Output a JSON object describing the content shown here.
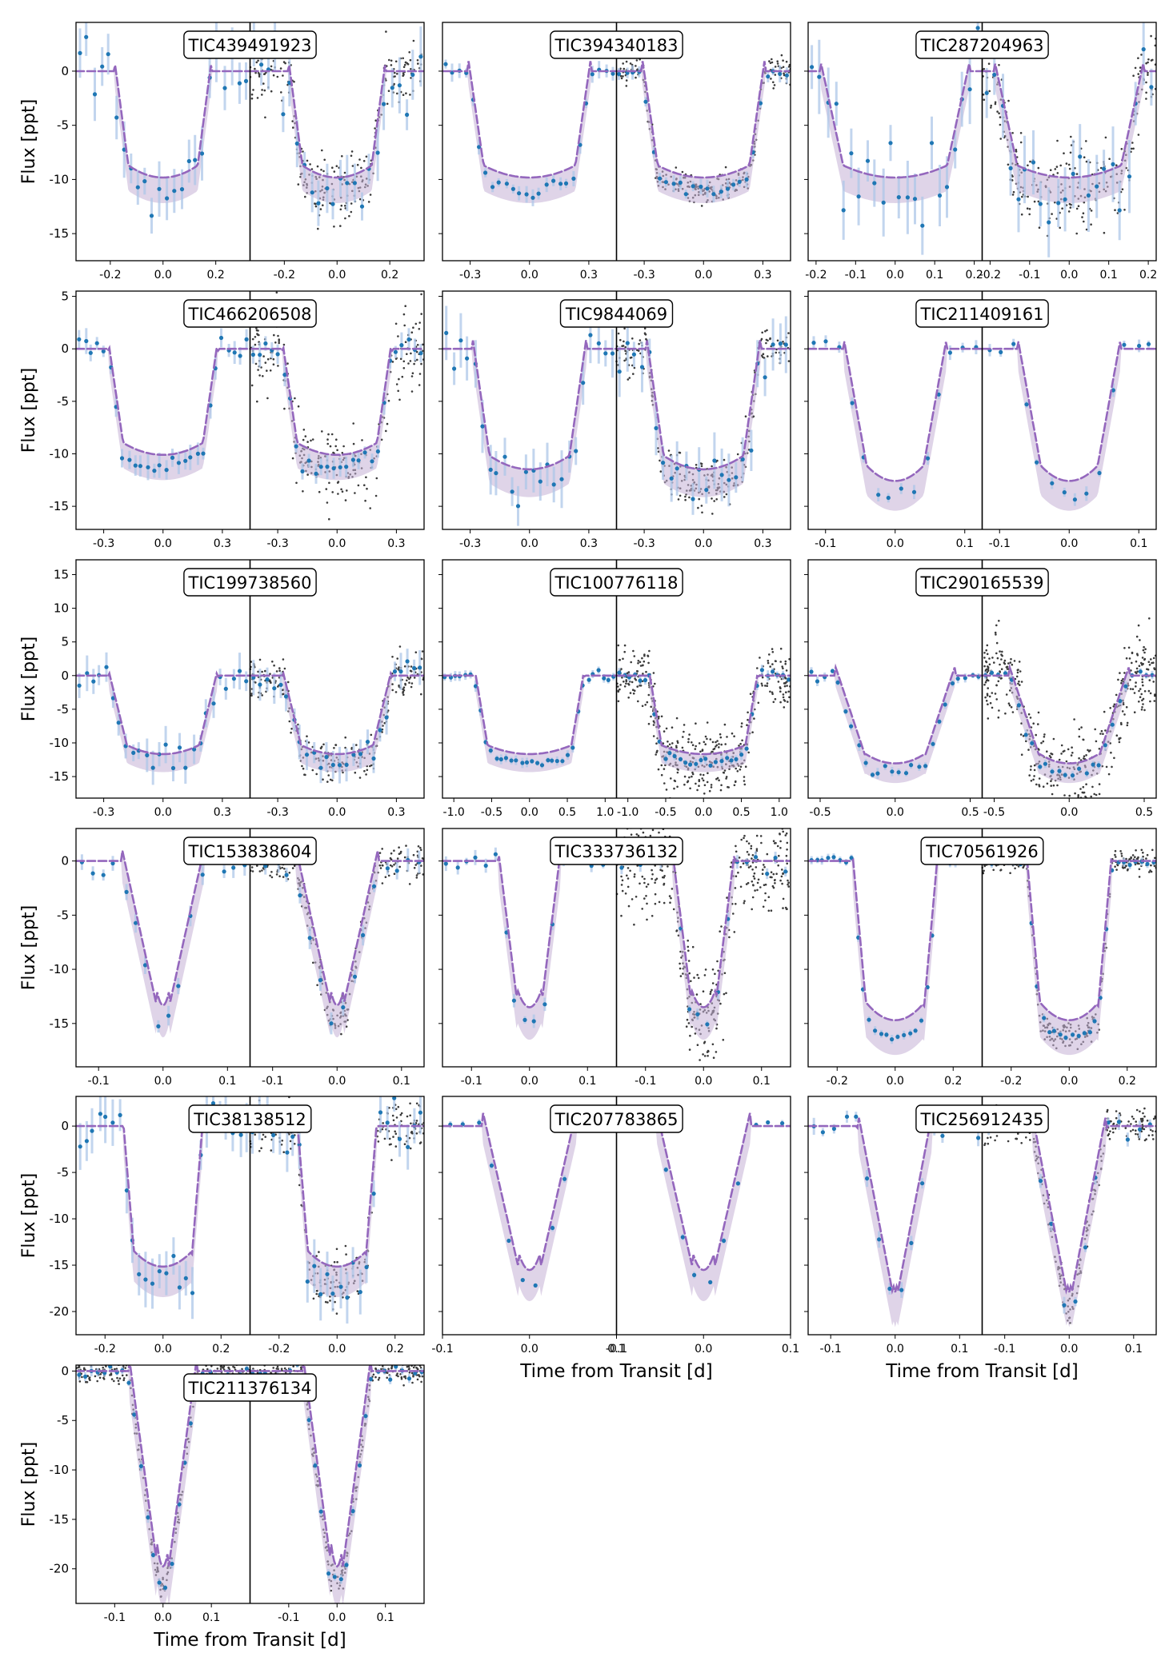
{
  "figure": {
    "ylabel": "Flux [ppt]",
    "xlabel": "Time from Transit [d]"
  },
  "colors": {
    "model": "#9467bd",
    "band": "#c5b0d5",
    "binned": "#1f77b4",
    "errorbar": "#aec7e8",
    "raw": "#3a3a3a"
  },
  "chart_data": [
    {
      "type": "line",
      "title": "TIC439491923",
      "depth": 11,
      "halfwidth": 0.13,
      "ingress": 0.055,
      "xlim": [
        -0.33,
        0.33
      ],
      "xticks": [
        -0.2,
        0,
        0.2
      ],
      "xtick_labels": [
        "-0.2",
        "0.0",
        "0.2"
      ],
      "ylim": [
        -17.5,
        4.5
      ],
      "yticks": [
        0,
        -5,
        -10,
        -15
      ],
      "ytick_labels": [
        "0",
        "-5",
        "-10",
        "-15"
      ],
      "noise": 1.6,
      "ebar": 2.0,
      "raw_right": true,
      "raw_left": false,
      "raw_noise": 1.5,
      "nbin": 24
    },
    {
      "type": "line",
      "title": "TIC394340183",
      "depth": 11,
      "halfwidth": 0.23,
      "ingress": 0.08,
      "xlim": [
        -0.44,
        0.44
      ],
      "xticks": [
        -0.3,
        0,
        0.3
      ],
      "xtick_labels": [
        "-0.3",
        "0.0",
        "0.3"
      ],
      "ylim": [
        -17.5,
        4.5
      ],
      "yticks": [
        0,
        -5,
        -10,
        -15
      ],
      "ytick_labels": [],
      "noise": 0.35,
      "ebar": 0.6,
      "raw_right": true,
      "raw_left": false,
      "raw_noise": 0.7,
      "nbin": 26
    },
    {
      "type": "line",
      "title": "TIC287204963",
      "depth": 11,
      "halfwidth": 0.13,
      "ingress": 0.06,
      "xlim": [
        -0.22,
        0.22
      ],
      "xticks": [
        -0.2,
        -0.1,
        0,
        0.1,
        0.2
      ],
      "xtick_labels": [
        "-0.2",
        "-0.1",
        "0.0",
        "0.1",
        "0.2"
      ],
      "ylim": [
        -17.5,
        4.5
      ],
      "yticks": [
        0,
        -5,
        -10,
        -15
      ],
      "ytick_labels": [],
      "noise": 2.0,
      "ebar": 2.5,
      "raw_right": true,
      "raw_left": false,
      "raw_noise": 2.0,
      "nbin": 22
    },
    {
      "type": "line",
      "title": "TIC466206508",
      "depth": 11.3,
      "halfwidth": 0.2,
      "ingress": 0.08,
      "xlim": [
        -0.44,
        0.44
      ],
      "xticks": [
        -0.3,
        0,
        0.3
      ],
      "xtick_labels": [
        "-0.3",
        "0.0",
        "0.3"
      ],
      "ylim": [
        -17.2,
        5.5
      ],
      "yticks": [
        5,
        0,
        -5,
        -10,
        -15
      ],
      "ytick_labels": [
        "5",
        "0",
        "-5",
        "-10",
        "-15"
      ],
      "noise": 0.5,
      "ebar": 0.9,
      "raw_right": true,
      "raw_left": false,
      "raw_noise": 2.0,
      "nbin": 28
    },
    {
      "type": "line",
      "title": "TIC9844069",
      "depth": 12.8,
      "halfwidth": 0.2,
      "ingress": 0.09,
      "xlim": [
        -0.44,
        0.44
      ],
      "xticks": [
        -0.3,
        0,
        0.3
      ],
      "xtick_labels": [
        "-0.3",
        "0.0",
        "0.3"
      ],
      "ylim": [
        -17.2,
        5.5
      ],
      "yticks": [
        5,
        0,
        -5,
        -10,
        -15
      ],
      "ytick_labels": [],
      "noise": 1.4,
      "ebar": 2.0,
      "raw_right": true,
      "raw_left": false,
      "raw_noise": 1.2,
      "nbin": 24
    },
    {
      "type": "line",
      "title": "TIC211409161",
      "depth": 14,
      "halfwidth": 0.04,
      "ingress": 0.035,
      "xlim": [
        -0.125,
        0.125
      ],
      "xticks": [
        -0.1,
        0,
        0.1
      ],
      "xtick_labels": [
        "-0.1",
        "0.0",
        "0.1"
      ],
      "ylim": [
        -17.2,
        5.5
      ],
      "yticks": [
        5,
        0,
        -5,
        -10,
        -15
      ],
      "ytick_labels": [],
      "noise": 0.5,
      "ebar": 0.5,
      "raw_right": false,
      "raw_left": false,
      "raw_noise": 0,
      "nbin": 14
    },
    {
      "type": "line",
      "title": "TIC199738560",
      "depth": 13,
      "halfwidth": 0.18,
      "ingress": 0.1,
      "xlim": [
        -0.44,
        0.44
      ],
      "xticks": [
        -0.3,
        0,
        0.3
      ],
      "xtick_labels": [
        "-0.3",
        "0.0",
        "0.3"
      ],
      "ylim": [
        -18.2,
        17.2
      ],
      "yticks": [
        15,
        10,
        5,
        0,
        -5,
        -10,
        -15
      ],
      "ytick_labels": [
        "15",
        "10",
        "5",
        "0",
        "-5",
        "-10",
        "-15"
      ],
      "noise": 1.2,
      "ebar": 2.0,
      "raw_right": true,
      "raw_left": false,
      "raw_noise": 1.6,
      "nbin": 26
    },
    {
      "type": "line",
      "title": "TIC100776118",
      "depth": 13,
      "halfwidth": 0.55,
      "ingress": 0.18,
      "xlim": [
        -1.15,
        1.15
      ],
      "xticks": [
        -1,
        -0.5,
        0,
        0.5,
        1
      ],
      "xtick_labels": [
        "-1.0",
        "-0.5",
        "0.0",
        "0.5",
        "1.0"
      ],
      "ylim": [
        -18.2,
        17.2
      ],
      "yticks": [
        15,
        10,
        5,
        0,
        -5,
        -10,
        -15
      ],
      "ytick_labels": [],
      "noise": 0.4,
      "ebar": 0.6,
      "raw_right": true,
      "raw_left": false,
      "raw_noise": 2.5,
      "nbin": 34
    },
    {
      "type": "line",
      "title": "TIC290165539",
      "depth": 14.5,
      "halfwidth": 0.2,
      "ingress": 0.2,
      "xlim": [
        -0.58,
        0.58
      ],
      "xticks": [
        -0.5,
        0,
        0.5
      ],
      "xtick_labels": [
        "-0.5",
        "0.0",
        "0.5"
      ],
      "ylim": [
        -18.2,
        17.2
      ],
      "yticks": [
        15,
        10,
        5,
        0,
        -5,
        -10,
        -15
      ],
      "ytick_labels": [],
      "noise": 0.5,
      "ebar": 0.6,
      "raw_right": true,
      "raw_left": false,
      "raw_noise": 3.0,
      "nbin": 26
    },
    {
      "type": "line",
      "title": "TIC153838604",
      "depth": 14.8,
      "halfwidth": 0.01,
      "ingress": 0.055,
      "xlim": [
        -0.135,
        0.135
      ],
      "xticks": [
        -0.1,
        0,
        0.1
      ],
      "xtick_labels": [
        "-0.1",
        "0.0",
        "0.1"
      ],
      "ylim": [
        -19,
        3
      ],
      "yticks": [
        0,
        -5,
        -10,
        -15
      ],
      "ytick_labels": [
        "0",
        "-5",
        "-10",
        "-15"
      ],
      "noise": 0.8,
      "ebar": 0.8,
      "raw_right": true,
      "raw_left": false,
      "raw_noise": 0.9,
      "nbin": 16
    },
    {
      "type": "line",
      "title": "TIC333736132",
      "depth": 15,
      "halfwidth": 0.02,
      "ingress": 0.035,
      "xlim": [
        -0.15,
        0.15
      ],
      "xticks": [
        -0.1,
        0,
        0.1
      ],
      "xtick_labels": [
        "-0.1",
        "0.0",
        "0.1"
      ],
      "ylim": [
        -19,
        3
      ],
      "yticks": [
        0,
        -5,
        -10,
        -15
      ],
      "ytick_labels": [],
      "noise": 0.5,
      "ebar": 0.5,
      "raw_right": true,
      "raw_left": false,
      "raw_noise": 2.5,
      "nbin": 18
    },
    {
      "type": "line",
      "title": "TIC70561926",
      "depth": 16.3,
      "halfwidth": 0.1,
      "ingress": 0.05,
      "xlim": [
        -0.3,
        0.3
      ],
      "xticks": [
        -0.2,
        0,
        0.2
      ],
      "xtick_labels": [
        "-0.2",
        "0.0",
        "0.2"
      ],
      "ylim": [
        -19,
        3
      ],
      "yticks": [
        0,
        -5,
        -10,
        -15
      ],
      "ytick_labels": [],
      "noise": 0.25,
      "ebar": 0.3,
      "raw_right": true,
      "raw_left": false,
      "raw_noise": 0.6,
      "nbin": 30
    },
    {
      "type": "line",
      "title": "TIC38138512",
      "depth": 16.8,
      "halfwidth": 0.1,
      "ingress": 0.04,
      "xlim": [
        -0.3,
        0.3
      ],
      "xticks": [
        -0.2,
        0,
        0.2
      ],
      "xtick_labels": [
        "-0.2",
        "0.0",
        "0.2"
      ],
      "ylim": [
        -22.5,
        3.2
      ],
      "yticks": [
        0,
        -5,
        -10,
        -15,
        -20
      ],
      "ytick_labels": [
        "0",
        "-5",
        "-10",
        "-15",
        "-20"
      ],
      "noise": 1.4,
      "ebar": 2.2,
      "raw_right": true,
      "raw_left": false,
      "raw_noise": 1.5,
      "nbin": 26
    },
    {
      "type": "line",
      "title": "TIC207783865",
      "depth": 17.2,
      "halfwidth": 0.012,
      "ingress": 0.042,
      "xlim": [
        -0.1,
        0.1
      ],
      "xticks": [
        -0.1,
        0,
        0.1
      ],
      "xtick_labels": [
        "-0.1",
        "0.0",
        "0.1"
      ],
      "ylim": [
        -22.5,
        3.2
      ],
      "yticks": [
        0,
        -5,
        -10,
        -15,
        -20
      ],
      "ytick_labels": [],
      "noise": 0.3,
      "ebar": 0.3,
      "raw_right": false,
      "raw_left": false,
      "raw_noise": 0,
      "nbin": 12
    },
    {
      "type": "line",
      "title": "TIC256912435",
      "depth": 19.8,
      "halfwidth": 0.004,
      "ingress": 0.055,
      "xlim": [
        -0.135,
        0.135
      ],
      "xticks": [
        -0.1,
        0,
        0.1
      ],
      "xtick_labels": [
        "-0.1",
        "0.0",
        "0.1"
      ],
      "ylim": [
        -22.5,
        3.2
      ],
      "yticks": [
        0,
        -5,
        -10,
        -15,
        -20
      ],
      "ytick_labels": [],
      "noise": 0.7,
      "ebar": 0.7,
      "raw_right": true,
      "raw_left": false,
      "raw_noise": 0.9,
      "nbin": 16
    },
    {
      "type": "line",
      "title": "TIC211376134",
      "depth": 21.8,
      "halfwidth": 0.012,
      "ingress": 0.06,
      "xlim": [
        -0.18,
        0.18
      ],
      "xticks": [
        -0.1,
        0,
        0.1
      ],
      "xtick_labels": [
        "-0.1",
        "0.0",
        "0.1"
      ],
      "ylim": [
        -23.5,
        0.6
      ],
      "yticks": [
        0,
        -5,
        -10,
        -15,
        -20
      ],
      "ytick_labels": [
        "0",
        "-5",
        "-10",
        "-15",
        "-20"
      ],
      "noise": 0.4,
      "ebar": 0.4,
      "raw_right": true,
      "raw_left": true,
      "raw_noise": 0.6,
      "nbin": 28
    }
  ]
}
